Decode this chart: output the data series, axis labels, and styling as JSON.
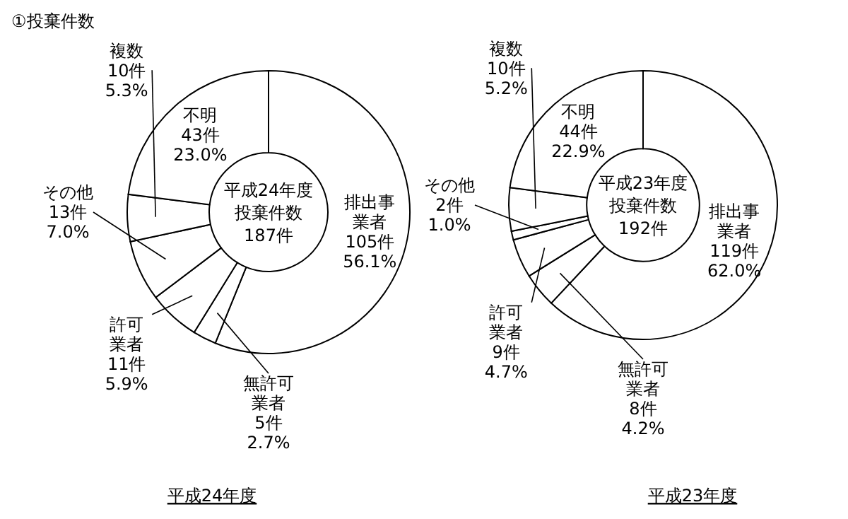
{
  "chart_data": [
    {
      "type": "donut",
      "title": "①投棄件数",
      "xlabel": "平成24年度",
      "categories": [
        "排出事業者",
        "無許可業者",
        "許可業者",
        "その他",
        "複数",
        "不明"
      ],
      "values": [
        105,
        5,
        11,
        13,
        10,
        43
      ],
      "value_labels": [
        "105件\n56.1%",
        "5件\n2.7%",
        "11件\n5.9%",
        "13件\n7.0%",
        "10件\n5.3%",
        "43件\n23.0%"
      ],
      "colors": [
        "#ffffff",
        "#ffffff",
        "#ffffff",
        "#ffffff",
        "#ffffff",
        "#ffffff"
      ],
      "annotations": [
        "平成24年度",
        "投棄件数",
        "187件"
      ]
    },
    {
      "type": "donut",
      "xlabel": "平成23年度",
      "categories": [
        "排出事業者",
        "無許可業者",
        "許可業者",
        "その他",
        "複数",
        "不明"
      ],
      "values": [
        119,
        8,
        9,
        2,
        10,
        44
      ],
      "value_labels": [
        "119件\n62.0%",
        "8件\n4.2%",
        "9件\n4.7%",
        "2件\n1.0%",
        "10件\n5.2%",
        "44件\n22.9%"
      ],
      "colors": [
        "#ffffff",
        "#ffffff",
        "#ffffff",
        "#ffffff",
        "#ffffff",
        "#ffffff"
      ],
      "annotations": [
        "平成23年度",
        "投棄件数",
        "192件"
      ]
    }
  ]
}
